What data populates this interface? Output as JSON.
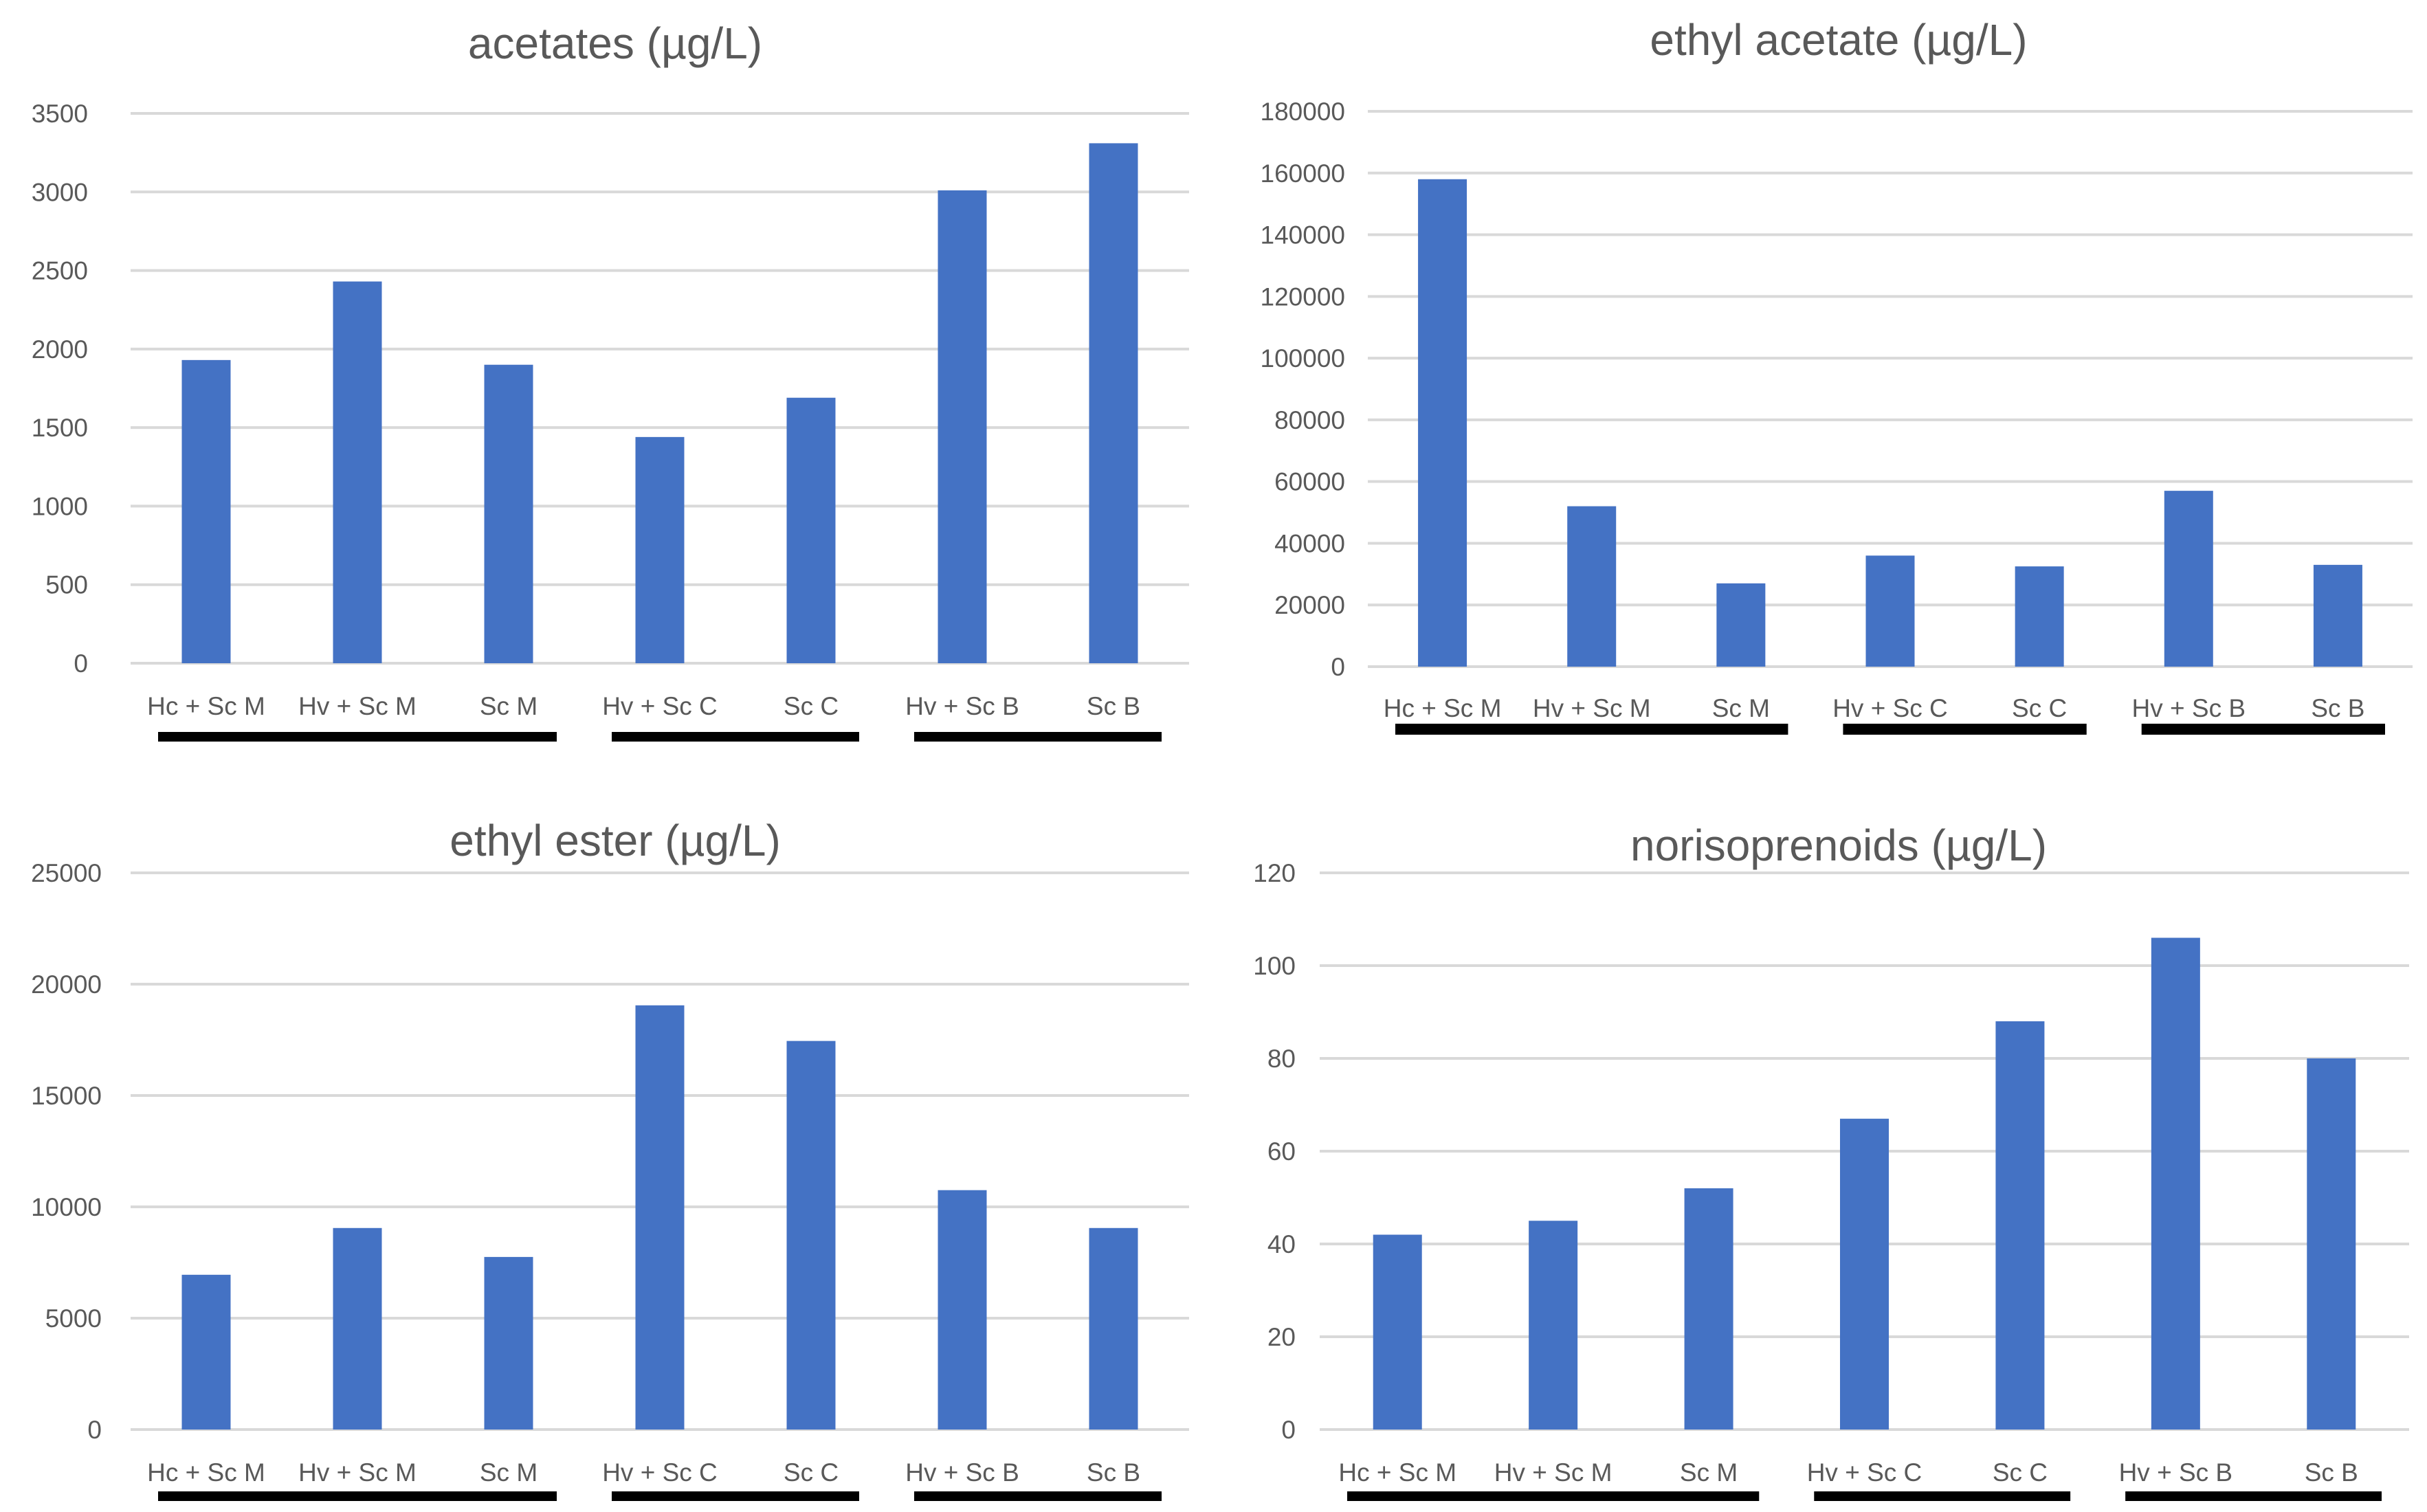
{
  "chart_data": [
    {
      "type": "bar",
      "title": "acetates (µg/L)",
      "categories": [
        "Hc + Sc M",
        "Hv + Sc M",
        "Sc M",
        "Hv + Sc C",
        "Sc C",
        "Hv + Sc B",
        "Sc B"
      ],
      "values": [
        1930,
        2430,
        1900,
        1440,
        1690,
        3010,
        3310
      ],
      "ylim": [
        0,
        3500
      ],
      "yticks": [
        0,
        500,
        1000,
        1500,
        2000,
        2500,
        3000,
        3500
      ],
      "xlabel": "",
      "ylabel": "",
      "grid": true,
      "bar_color": "#4472c4",
      "groups": [
        {
          "from": "Hc + Sc M",
          "to": "Sc M"
        },
        {
          "from": "Hv + Sc C",
          "to": "Sc C"
        },
        {
          "from": "Hv + Sc B",
          "to": "Sc B"
        }
      ]
    },
    {
      "type": "bar",
      "title": "ethyl acetate (µg/L)",
      "categories": [
        "Hc + Sc M",
        "Hv + Sc M",
        "Sc M",
        "Hv + Sc C",
        "Sc C",
        "Hv + Sc B",
        "Sc B"
      ],
      "values": [
        158000,
        52000,
        27000,
        36000,
        32500,
        57000,
        33000
      ],
      "ylim": [
        0,
        180000
      ],
      "yticks": [
        0,
        20000,
        40000,
        60000,
        80000,
        100000,
        120000,
        140000,
        160000,
        180000
      ],
      "xlabel": "",
      "ylabel": "",
      "grid": true,
      "bar_color": "#4472c4",
      "groups": [
        {
          "from": "Hc + Sc M",
          "to": "Sc M"
        },
        {
          "from": "Hv + Sc C",
          "to": "Sc C"
        },
        {
          "from": "Hv + Sc B",
          "to": "Sc B"
        }
      ]
    },
    {
      "type": "bar",
      "title": "ethyl ester (µg/L)",
      "categories": [
        "Hc + Sc M",
        "Hv + Sc M",
        "Sc M",
        "Hv + Sc C",
        "Sc C",
        "Hv + Sc B",
        "Sc B"
      ],
      "values": [
        6950,
        9050,
        7750,
        19050,
        17450,
        10750,
        9050
      ],
      "ylim": [
        0,
        25000
      ],
      "yticks": [
        0,
        5000,
        10000,
        15000,
        20000,
        25000
      ],
      "xlabel": "",
      "ylabel": "",
      "grid": true,
      "bar_color": "#4472c4",
      "groups": [
        {
          "from": "Hc + Sc M",
          "to": "Sc M"
        },
        {
          "from": "Hv + Sc C",
          "to": "Sc C"
        },
        {
          "from": "Hv + Sc B",
          "to": "Sc B"
        }
      ]
    },
    {
      "type": "bar",
      "title": "norisoprenoids (µg/L)",
      "categories": [
        "Hc + Sc M",
        "Hv + Sc M",
        "Sc M",
        "Hv + Sc C",
        "Sc C",
        "Hv + Sc B",
        "Sc B"
      ],
      "values": [
        42,
        45,
        52,
        67,
        88,
        106,
        80
      ],
      "ylim": [
        0,
        120
      ],
      "yticks": [
        0,
        20,
        40,
        60,
        80,
        100,
        120
      ],
      "xlabel": "",
      "ylabel": "",
      "grid": true,
      "bar_color": "#4472c4",
      "groups": [
        {
          "from": "Hc + Sc M",
          "to": "Sc M"
        },
        {
          "from": "Hv + Sc C",
          "to": "Sc C"
        },
        {
          "from": "Hv + Sc B",
          "to": "Sc B"
        }
      ]
    }
  ]
}
